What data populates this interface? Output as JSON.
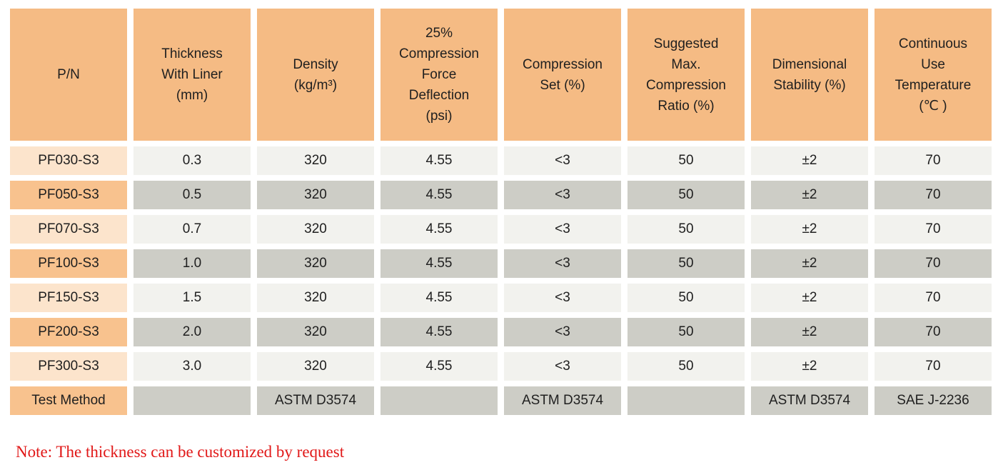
{
  "table": {
    "columns": [
      {
        "label": "P/N"
      },
      {
        "label": "Thickness\nWith Liner\n(mm)"
      },
      {
        "label": "Density\n(kg/m³)"
      },
      {
        "label": "25%\nCompression\nForce\nDeflection\n(psi)"
      },
      {
        "label": "Compression\nSet (%)"
      },
      {
        "label": "Suggested\nMax.\nCompression\nRatio (%)"
      },
      {
        "label": "Dimensional\nStability (%)"
      },
      {
        "label": "Continuous\nUse\nTemperature\n(℃ )"
      }
    ],
    "rows": [
      {
        "cells": [
          "PF030-S3",
          "0.3",
          "320",
          "4.55",
          "<3",
          "50",
          "±2",
          "70"
        ]
      },
      {
        "cells": [
          "PF050-S3",
          "0.5",
          "320",
          "4.55",
          "<3",
          "50",
          "±2",
          "70"
        ]
      },
      {
        "cells": [
          "PF070-S3",
          "0.7",
          "320",
          "4.55",
          "<3",
          "50",
          "±2",
          "70"
        ]
      },
      {
        "cells": [
          "PF100-S3",
          "1.0",
          "320",
          "4.55",
          "<3",
          "50",
          "±2",
          "70"
        ]
      },
      {
        "cells": [
          "PF150-S3",
          "1.5",
          "320",
          "4.55",
          "<3",
          "50",
          "±2",
          "70"
        ]
      },
      {
        "cells": [
          "PF200-S3",
          "2.0",
          "320",
          "4.55",
          "<3",
          "50",
          "±2",
          "70"
        ]
      },
      {
        "cells": [
          "PF300-S3",
          "3.0",
          "320",
          "4.55",
          "<3",
          "50",
          "±2",
          "70"
        ]
      },
      {
        "cells": [
          "Test Method",
          "",
          "ASTM D3574",
          "",
          "ASTM D3574",
          "",
          "ASTM D3574",
          "SAE J-2236"
        ]
      }
    ]
  },
  "note": {
    "text": "Note: The thickness can be customized by request"
  },
  "colors": {
    "header_orange": "#f5bb84",
    "row_orange_dark": "#f8c28e",
    "row_orange_light": "#fce4cc",
    "row_gray_light": "#f2f2ee",
    "row_gray_dark": "#cdcdc6",
    "note_red": "#e11818"
  }
}
